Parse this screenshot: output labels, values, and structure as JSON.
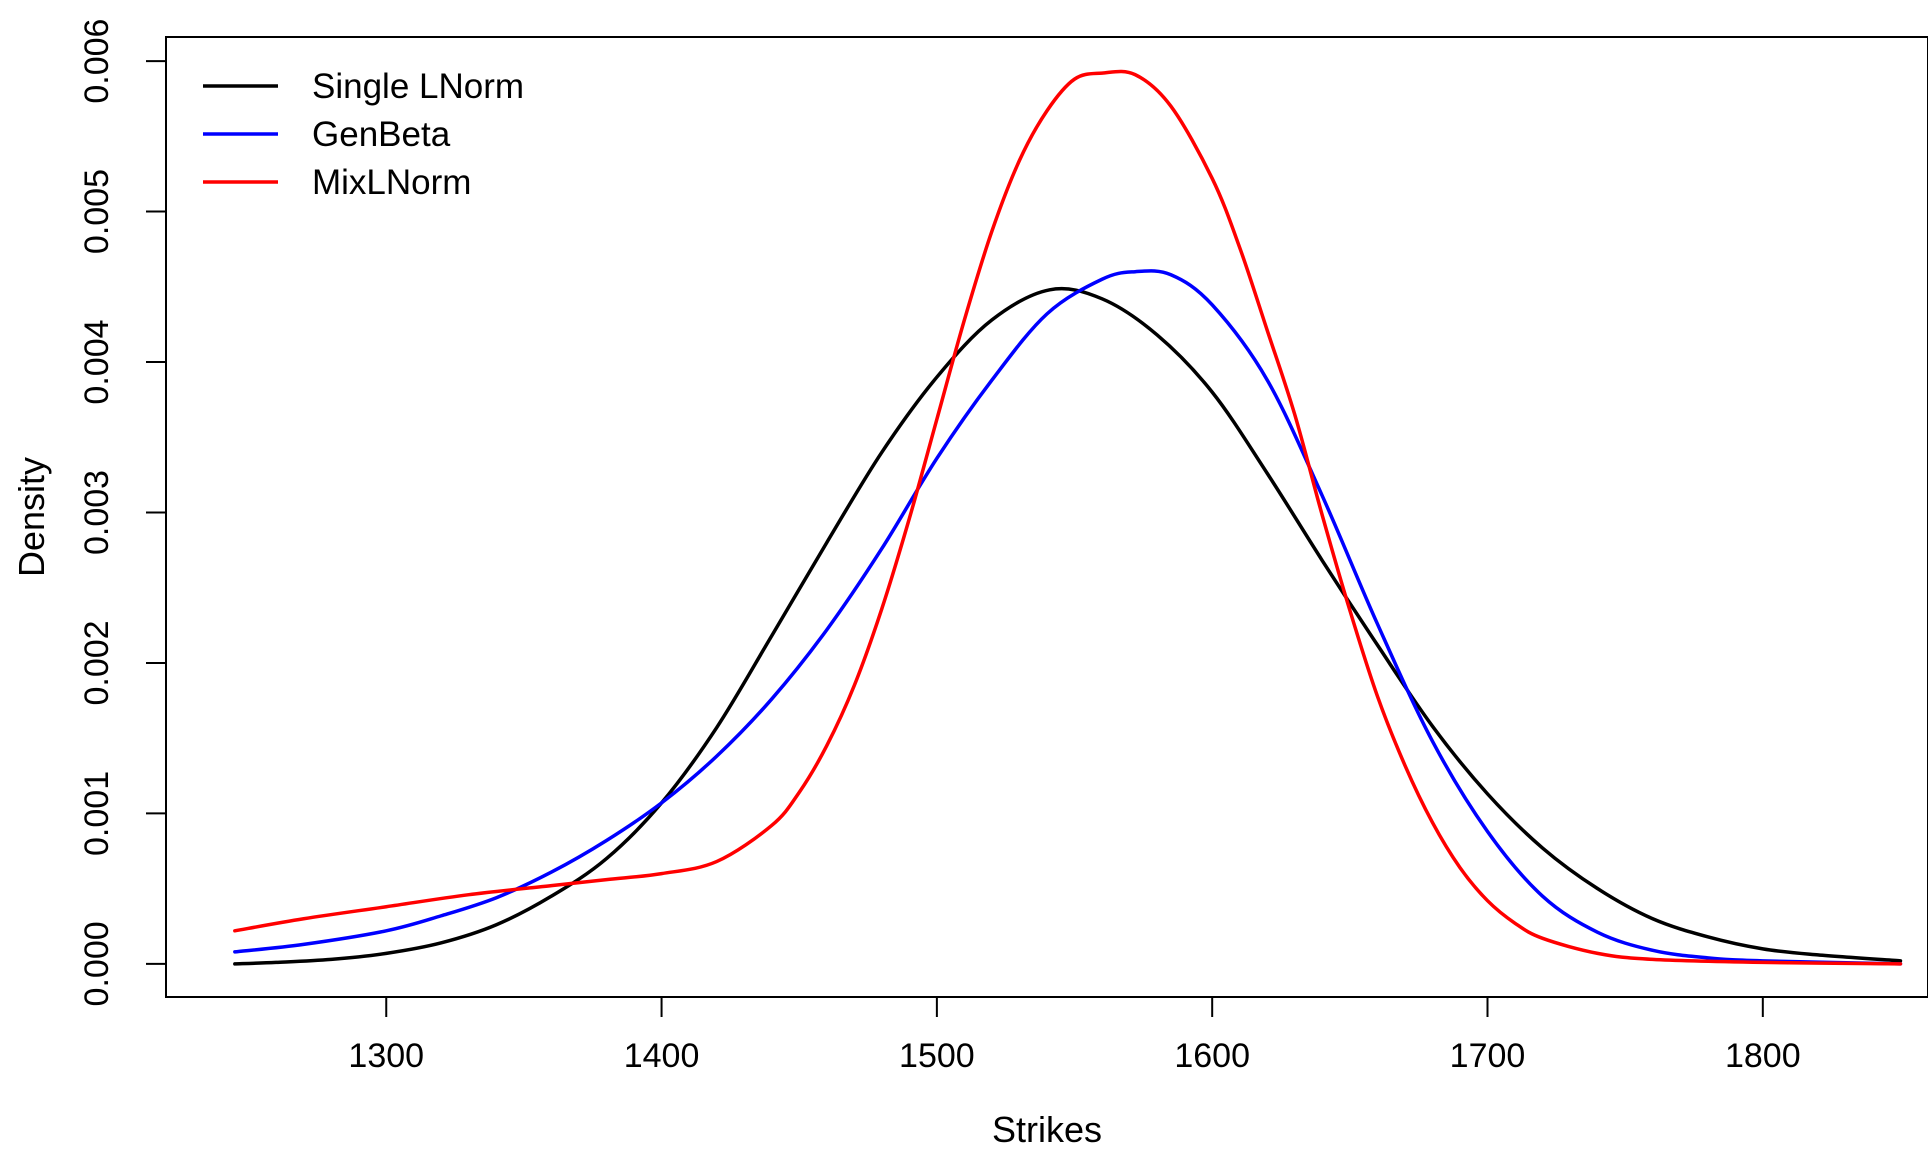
{
  "chart_data": {
    "type": "line",
    "title": "",
    "xlabel": "Strikes",
    "ylabel": "Density",
    "xlim": [
      1220,
      1860
    ],
    "ylim": [
      -0.00022,
      0.00616
    ],
    "x_ticks": [
      1300,
      1400,
      1500,
      1600,
      1700,
      1800
    ],
    "y_ticks": [
      0,
      0.001,
      0.002,
      0.003,
      0.004,
      0.005,
      0.006
    ],
    "x_tick_labels": [
      "1300",
      "1400",
      "1500",
      "1600",
      "1700",
      "1800"
    ],
    "y_tick_labels": [
      "0.000",
      "0.001",
      "0.002",
      "0.003",
      "0.004",
      "0.005",
      "0.006"
    ],
    "grid": false,
    "legend_position": "top-left",
    "series": [
      {
        "name": "Single LNorm",
        "color": "#000000",
        "x": [
          1245,
          1260,
          1280,
          1300,
          1320,
          1340,
          1360,
          1380,
          1400,
          1420,
          1440,
          1460,
          1480,
          1500,
          1520,
          1541,
          1560,
          1580,
          1600,
          1620,
          1640,
          1660,
          1680,
          1700,
          1720,
          1740,
          1760,
          1780,
          1800,
          1820,
          1850
        ],
        "y": [
          0.0,
          1e-05,
          3e-05,
          7e-05,
          0.00014,
          0.00026,
          0.00045,
          0.0007,
          0.00107,
          0.00157,
          0.00218,
          0.0028,
          0.0034,
          0.0039,
          0.00428,
          0.00448,
          0.00442,
          0.00418,
          0.0038,
          0.00326,
          0.00268,
          0.00212,
          0.00158,
          0.00113,
          0.00077,
          0.0005,
          0.0003,
          0.00018,
          0.0001,
          6e-05,
          2e-05
        ]
      },
      {
        "name": "GenBeta",
        "color": "#0000ff",
        "x": [
          1245,
          1270,
          1300,
          1320,
          1340,
          1360,
          1380,
          1400,
          1420,
          1440,
          1460,
          1480,
          1500,
          1520,
          1540,
          1560,
          1572,
          1585,
          1600,
          1620,
          1640,
          1660,
          1680,
          1700,
          1720,
          1740,
          1760,
          1780,
          1800,
          1850
        ],
        "y": [
          8e-05,
          0.00013,
          0.00022,
          0.00032,
          0.00044,
          0.00061,
          0.00082,
          0.00107,
          0.00138,
          0.00176,
          0.00222,
          0.00276,
          0.00336,
          0.00388,
          0.00432,
          0.00455,
          0.0046,
          0.00458,
          0.00438,
          0.00388,
          0.00311,
          0.00226,
          0.00148,
          0.00088,
          0.00045,
          0.00021,
          9e-05,
          4e-05,
          2e-05,
          0.0
        ]
      },
      {
        "name": "MixLNorm",
        "color": "#ff0000",
        "x": [
          1245,
          1270,
          1300,
          1330,
          1360,
          1380,
          1400,
          1420,
          1440,
          1450,
          1460,
          1470,
          1480,
          1490,
          1500,
          1510,
          1520,
          1530,
          1540,
          1550,
          1560,
          1572,
          1585,
          1600,
          1610,
          1620,
          1630,
          1640,
          1650,
          1660,
          1670,
          1680,
          1690,
          1700,
          1710,
          1720,
          1740,
          1760,
          1800,
          1850
        ],
        "y": [
          0.00022,
          0.0003,
          0.00038,
          0.00046,
          0.00052,
          0.00056,
          0.0006,
          0.00068,
          0.00092,
          0.00114,
          0.00145,
          0.00185,
          0.00236,
          0.00296,
          0.00362,
          0.00428,
          0.00487,
          0.00534,
          0.00567,
          0.00588,
          0.00592,
          0.00591,
          0.0057,
          0.00522,
          0.00476,
          0.00421,
          0.00365,
          0.00298,
          0.00235,
          0.00178,
          0.00132,
          0.00094,
          0.00064,
          0.00042,
          0.00027,
          0.00017,
          7e-05,
          3e-05,
          1e-05,
          0.0
        ]
      }
    ]
  }
}
